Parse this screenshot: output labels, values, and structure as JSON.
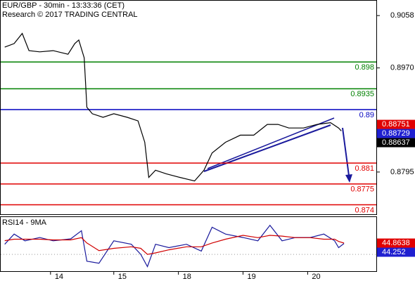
{
  "chart_data": [
    {
      "type": "line",
      "title": "EUR/GBP - 30min - 13:33:36 (CET)",
      "subtitle": "Research © 2017 TRADING CENTRAL",
      "x": [
        3,
        10,
        16,
        21,
        29,
        39,
        50,
        55,
        58,
        62,
        64,
        68,
        76,
        84,
        94,
        102,
        107,
        110,
        115,
        123,
        133,
        144,
        151,
        157,
        167,
        178,
        188,
        198,
        206,
        214,
        225,
        235,
        245,
        251,
        253
      ],
      "series": [
        {
          "color": "#000000",
          "values": [
            0.9005,
            0.9011,
            0.9028,
            0.8999,
            0.8997,
            0.8999,
            0.8993,
            0.9011,
            0.9017,
            0.8987,
            0.8904,
            0.8893,
            0.8887,
            0.8893,
            0.8887,
            0.8881,
            0.8845,
            0.8786,
            0.8798,
            0.8792,
            0.8786,
            0.878,
            0.8798,
            0.8827,
            0.8845,
            0.8857,
            0.8857,
            0.8875,
            0.8875,
            0.8869,
            0.8869,
            0.8875,
            0.8878,
            0.8869,
            0.8864
          ]
        }
      ],
      "xlim": [
        0,
        279
      ],
      "ylim": [
        0.8724,
        0.9083
      ],
      "yticks": [
        0.9058,
        {
          "value": 0.897,
          "label": "0.8970"
        },
        0.8795
      ],
      "levels": [
        {
          "value": 0.898,
          "color": "#008000"
        },
        {
          "value": 0.8935,
          "color": "#008000"
        },
        {
          "value": 0.89,
          "color": "#0000c0"
        },
        {
          "value": 0.881,
          "color": "#e00000"
        },
        {
          "value": 0.8775,
          "color": "#e00000"
        },
        {
          "value": 0.874,
          "color": "#e00000"
        }
      ],
      "tags": [
        {
          "value": 0.88751,
          "color": "#e00000"
        },
        {
          "value": 0.88729,
          "color": "#1f1fd0"
        },
        {
          "value": 0.88637,
          "color": "#000000"
        }
      ]
    },
    {
      "type": "line",
      "title": "RSI14 - 9MA",
      "x": [
        3,
        10,
        18,
        29,
        39,
        52,
        60,
        64,
        73,
        84,
        97,
        104,
        109,
        115,
        125,
        138,
        149,
        157,
        167,
        180,
        191,
        200,
        209,
        219,
        230,
        240,
        248,
        251,
        255
      ],
      "series": [
        {
          "color": "#1a1a9c",
          "values": [
            43.3,
            56.7,
            47.8,
            52.2,
            47.8,
            50.4,
            61.1,
            21.1,
            18.4,
            47.8,
            43.3,
            30,
            14,
            43.3,
            38.9,
            43.3,
            34.4,
            65.6,
            56.7,
            52.2,
            47.8,
            68.2,
            47.8,
            52.2,
            52.2,
            56.7,
            47.8,
            38.9,
            44.3
          ]
        },
        {
          "color": "#d00000",
          "values": [
            48,
            50,
            50,
            50,
            49,
            49,
            52,
            45,
            35,
            38,
            40,
            38,
            30,
            32,
            36,
            40,
            40,
            45,
            50,
            55,
            52,
            55,
            54,
            52,
            52,
            50,
            50,
            47,
            44.9
          ]
        }
      ],
      "xlim": [
        0,
        279
      ],
      "ylim": [
        8,
        79
      ],
      "yticks": [
        30
      ],
      "xticks": [
        {
          "value": 37,
          "label": "14"
        },
        {
          "value": 84,
          "label": "15"
        },
        {
          "value": 132,
          "label": "18"
        },
        {
          "value": 180,
          "label": "19"
        },
        {
          "value": 228,
          "label": "20"
        }
      ],
      "tags": [
        {
          "value": 44.8638,
          "color": "#e00000"
        },
        {
          "value": 44.252,
          "color": "#1f1fd0"
        }
      ]
    }
  ]
}
